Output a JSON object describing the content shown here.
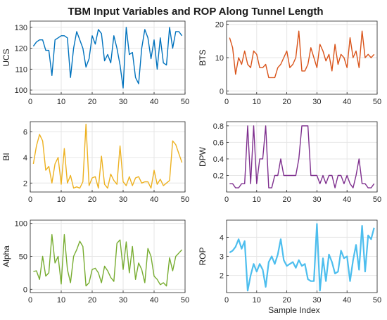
{
  "title": "TBM Input Variables and ROP Along Tunnel Length",
  "x_axis_label": "Sample Index",
  "chart_data": [
    {
      "type": "line",
      "ylabel": "UCS",
      "color": "#0072BD",
      "grid": true,
      "xlim": [
        0,
        50
      ],
      "ylim": [
        98,
        133
      ],
      "xticks": [
        0,
        10,
        20,
        30,
        40,
        50
      ],
      "yticks": [
        100,
        110,
        120,
        130
      ],
      "x": [
        1,
        2,
        3,
        4,
        5,
        6,
        7,
        8,
        9,
        10,
        11,
        12,
        13,
        14,
        15,
        16,
        17,
        18,
        19,
        20,
        21,
        22,
        23,
        24,
        25,
        26,
        27,
        28,
        29,
        30,
        31,
        32,
        33,
        34,
        35,
        36,
        37,
        38,
        39,
        40,
        41,
        42,
        43,
        44,
        45,
        46,
        47,
        48,
        49
      ],
      "y": [
        121,
        123,
        124,
        124,
        119,
        119,
        107,
        124,
        125,
        126,
        126,
        125,
        106,
        120,
        128,
        124,
        120,
        111,
        115,
        126,
        122,
        129,
        127,
        114,
        117,
        113,
        126,
        120,
        112,
        101,
        130,
        117,
        118,
        106,
        103,
        120,
        129,
        125,
        115,
        124,
        110,
        125,
        113,
        112,
        130,
        120,
        128,
        128,
        126
      ]
    },
    {
      "type": "line",
      "ylabel": "BTS",
      "color": "#D95319",
      "grid": true,
      "xlim": [
        0,
        50
      ],
      "ylim": [
        -1,
        21
      ],
      "xticks": [
        0,
        10,
        20,
        30,
        40,
        50
      ],
      "yticks": [
        0,
        10,
        20
      ],
      "x": [
        1,
        2,
        3,
        4,
        5,
        6,
        7,
        8,
        9,
        10,
        11,
        12,
        13,
        14,
        15,
        16,
        17,
        18,
        19,
        20,
        21,
        22,
        23,
        24,
        25,
        26,
        27,
        28,
        29,
        30,
        31,
        32,
        33,
        34,
        35,
        36,
        37,
        38,
        39,
        40,
        41,
        42,
        43,
        44,
        45,
        46,
        47,
        48,
        49
      ],
      "y": [
        16,
        13,
        5,
        10,
        8,
        12,
        8,
        7,
        12,
        11,
        7,
        7,
        8,
        4,
        4,
        4,
        7,
        8,
        10,
        12,
        7,
        8,
        10,
        18,
        6,
        6,
        8,
        13,
        10,
        7,
        14,
        12,
        9,
        11,
        6,
        14,
        8,
        11,
        10,
        7,
        16,
        10,
        12,
        7,
        18,
        10,
        11,
        10,
        11
      ]
    },
    {
      "type": "line",
      "ylabel": "BI",
      "color": "#EDB120",
      "grid": true,
      "xlim": [
        0,
        50
      ],
      "ylim": [
        1.3,
        6.8
      ],
      "xticks": [
        0,
        10,
        20,
        30,
        40,
        50
      ],
      "yticks": [
        2,
        4,
        6
      ],
      "x": [
        1,
        2,
        3,
        4,
        5,
        6,
        7,
        8,
        9,
        10,
        11,
        12,
        13,
        14,
        15,
        16,
        17,
        18,
        19,
        20,
        21,
        22,
        23,
        24,
        25,
        26,
        27,
        28,
        29,
        30,
        31,
        32,
        33,
        34,
        35,
        36,
        37,
        38,
        39,
        40,
        41,
        42,
        43,
        44,
        45,
        46,
        47,
        48,
        49
      ],
      "y": [
        3.5,
        4.9,
        5.8,
        5.3,
        3.0,
        3.3,
        2.0,
        3.5,
        4.0,
        1.9,
        4.7,
        2.0,
        2.6,
        1.6,
        1.7,
        1.6,
        2.1,
        6.6,
        1.8,
        2.4,
        2.5,
        1.6,
        4.1,
        1.9,
        1.6,
        2.7,
        2.2,
        1.9,
        4.9,
        2.1,
        1.8,
        2.5,
        1.8,
        2.4,
        2.5,
        2.0,
        2.1,
        2.1,
        1.6,
        3.0,
        1.9,
        2.3,
        1.8,
        2.0,
        2.2,
        5.3,
        5.0,
        4.3,
        3.6
      ]
    },
    {
      "type": "line",
      "ylabel": "DPW",
      "color": "#7E2F8E",
      "grid": true,
      "xlim": [
        0,
        50
      ],
      "ylim": [
        0,
        0.85
      ],
      "xticks": [
        0,
        10,
        20,
        30,
        40,
        50
      ],
      "yticks": [
        0.2,
        0.4,
        0.6,
        0.8
      ],
      "x": [
        1,
        2,
        3,
        4,
        5,
        6,
        7,
        8,
        9,
        10,
        11,
        12,
        13,
        14,
        15,
        16,
        17,
        18,
        19,
        20,
        21,
        22,
        23,
        24,
        25,
        26,
        27,
        28,
        29,
        30,
        31,
        32,
        33,
        34,
        35,
        36,
        37,
        38,
        39,
        40,
        41,
        42,
        43,
        44,
        45,
        46,
        47,
        48,
        49
      ],
      "y": [
        0.1,
        0.1,
        0.05,
        0.05,
        0.1,
        0.1,
        0.8,
        0.1,
        0.8,
        0.1,
        0.4,
        0.4,
        0.8,
        0.05,
        0.05,
        0.2,
        0.2,
        0.4,
        0.2,
        0.2,
        0.2,
        0.2,
        0.2,
        0.4,
        0.8,
        0.8,
        0.8,
        0.2,
        0.2,
        0.2,
        0.1,
        0.2,
        0.1,
        0.2,
        0.2,
        0.05,
        0.2,
        0.2,
        0.1,
        0.2,
        0.1,
        0.05,
        0.2,
        0.4,
        0.1,
        0.1,
        0.05,
        0.05,
        0.1
      ]
    },
    {
      "type": "line",
      "ylabel": "Alpha",
      "color": "#77AC30",
      "grid": true,
      "xlim": [
        0,
        50
      ],
      "ylim": [
        -5,
        105
      ],
      "xticks": [
        0,
        10,
        20,
        30,
        40,
        50
      ],
      "yticks": [
        0,
        50,
        100
      ],
      "x": [
        1,
        2,
        3,
        4,
        5,
        6,
        7,
        8,
        9,
        10,
        11,
        12,
        13,
        14,
        15,
        16,
        17,
        18,
        19,
        20,
        21,
        22,
        23,
        24,
        25,
        26,
        27,
        28,
        29,
        30,
        31,
        32,
        33,
        34,
        35,
        36,
        37,
        38,
        39,
        40,
        41,
        42,
        43,
        44,
        45,
        46,
        47,
        48,
        49
      ],
      "y": [
        27,
        28,
        15,
        50,
        20,
        25,
        83,
        40,
        50,
        8,
        83,
        30,
        10,
        50,
        60,
        73,
        65,
        5,
        10,
        30,
        32,
        25,
        10,
        35,
        28,
        18,
        12,
        70,
        75,
        30,
        72,
        25,
        65,
        15,
        40,
        30,
        10,
        62,
        50,
        20,
        15,
        7,
        10,
        5,
        48,
        28,
        50,
        55,
        60
      ]
    },
    {
      "type": "line",
      "ylabel": "ROP",
      "color": "#4DBEEE",
      "grid": true,
      "xlim": [
        0,
        50
      ],
      "ylim": [
        1.1,
        4.9
      ],
      "xticks": [
        0,
        10,
        20,
        30,
        40,
        50
      ],
      "yticks": [
        2,
        3,
        4
      ],
      "x": [
        1,
        2,
        3,
        4,
        5,
        6,
        7,
        8,
        9,
        10,
        11,
        12,
        13,
        14,
        15,
        16,
        17,
        18,
        19,
        20,
        21,
        22,
        23,
        24,
        25,
        26,
        27,
        28,
        29,
        30,
        31,
        32,
        33,
        34,
        35,
        36,
        37,
        38,
        39,
        40,
        41,
        42,
        43,
        44,
        45,
        46,
        47,
        48,
        49
      ],
      "y": [
        3.2,
        3.3,
        3.5,
        3.9,
        3.4,
        3.8,
        1.2,
        2.0,
        2.6,
        2.2,
        2.6,
        2.3,
        1.4,
        2.7,
        3.0,
        2.6,
        3.1,
        3.9,
        2.8,
        2.5,
        2.6,
        2.7,
        2.4,
        2.8,
        2.5,
        2.6,
        1.8,
        1.7,
        1.7,
        4.7,
        1.2,
        2.9,
        1.7,
        3.1,
        2.7,
        2.1,
        2.2,
        3.3,
        2.9,
        3.0,
        1.7,
        2.8,
        3.6,
        2.3,
        4.6,
        2.2,
        4.1,
        3.9,
        4.5
      ]
    }
  ]
}
